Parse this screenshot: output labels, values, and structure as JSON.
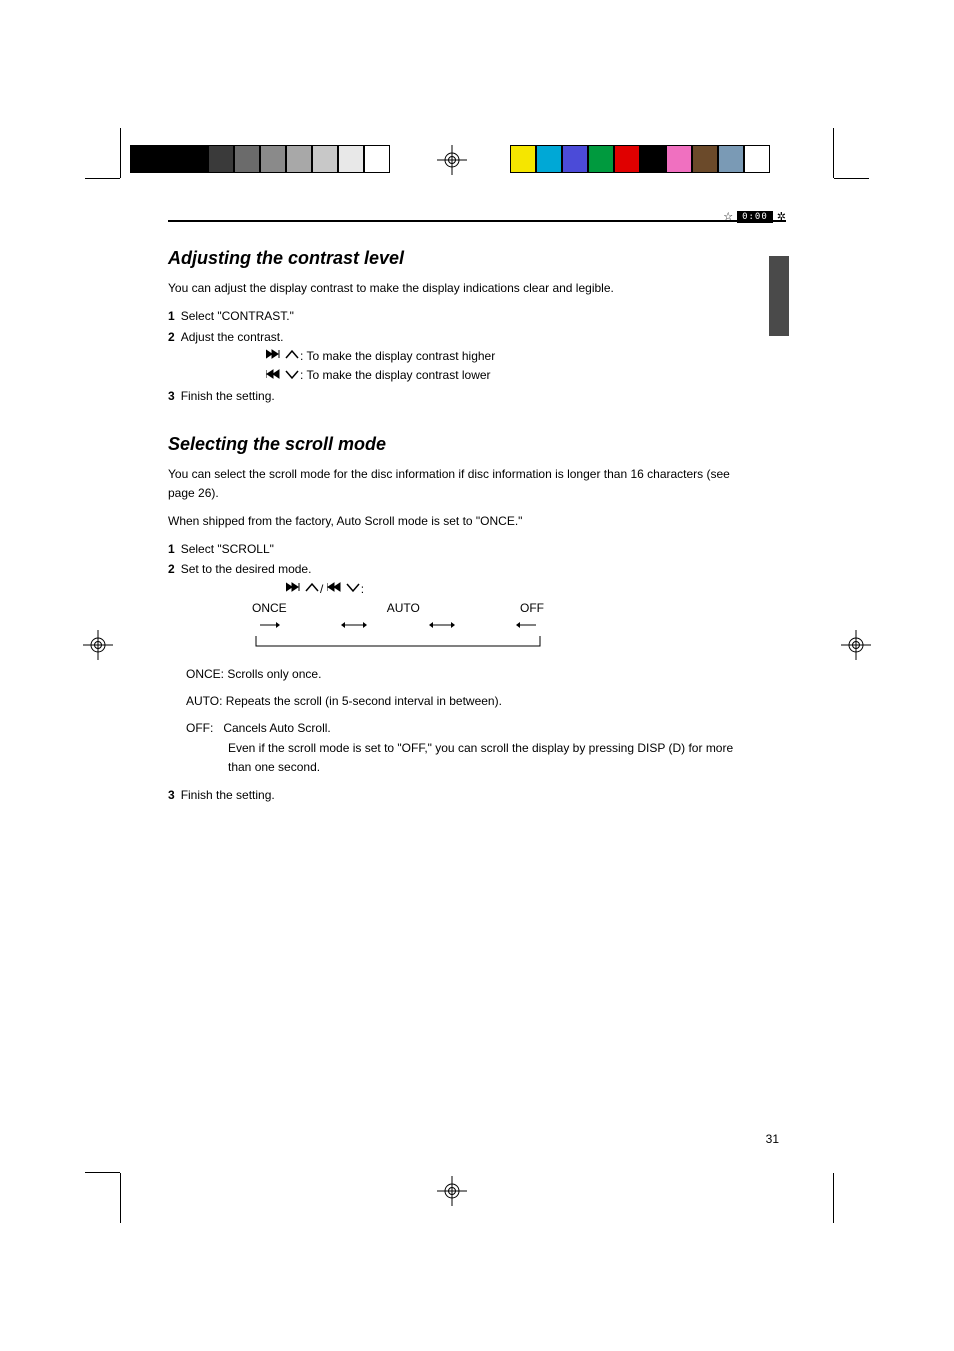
{
  "color_bar_left": [
    "#000000",
    "#000000",
    "#000000",
    "#3a3a3a",
    "#6b6b6b",
    "#8a8a8a",
    "#a8a8a8",
    "#c8c8c8",
    "#e8e8e8",
    "#ffffff"
  ],
  "color_bar_right": [
    "#f5e600",
    "#00a8d6",
    "#4b4bd8",
    "#009a3e",
    "#e00000",
    "#000000",
    "#f070c0",
    "#6b4a2a",
    "#7a9ab5",
    "#ffffff"
  ],
  "status": {
    "star": "☆",
    "time": "0:00",
    "gear": "✲"
  },
  "sections": {
    "contrast": {
      "heading": "Adjusting the contrast level",
      "intro": "You can adjust the display contrast to make the display indications clear and legible.",
      "step1_num": "1",
      "step1_text": "Select \"CONTRAST.\"",
      "step2_num": "2",
      "step2_pre": "Adjust the contrast.",
      "step2_fwd": ": To make the display contrast higher",
      "step2_rev": ": To make the display contrast lower",
      "step3_num": "3",
      "step3_text": "Finish the setting."
    },
    "scroll": {
      "heading": "Selecting the scroll mode",
      "intro": "You can select the scroll mode for the disc information if disc information is longer than 16 characters (see page 26).",
      "initial": "When shipped from the factory, Auto Scroll mode is set to \"ONCE.\"",
      "step1_num": "1",
      "step1_text": "Select \"SCROLL\"",
      "step2_num": "2",
      "step2_text": "Set to the desired mode.",
      "step2_fwd": "/",
      "step2_rev": ":",
      "diagram": {
        "labels": [
          "ONCE",
          "AUTO",
          "OFF"
        ],
        "note_once_label": "ONCE:",
        "note_once_text": "Scrolls only once.",
        "note_auto_label": "AUTO:",
        "note_auto_text": "Repeats the scroll (in 5-second interval in between).",
        "note_off_label": "OFF:",
        "note_off_text": "Cancels Auto Scroll."
      },
      "tip": "Even if the scroll mode is set to \"OFF,\" you can scroll the display by pressing DISP (D) for more than one second.",
      "step3_num": "3",
      "step3_text": "Finish the setting."
    }
  },
  "page_num": "31"
}
